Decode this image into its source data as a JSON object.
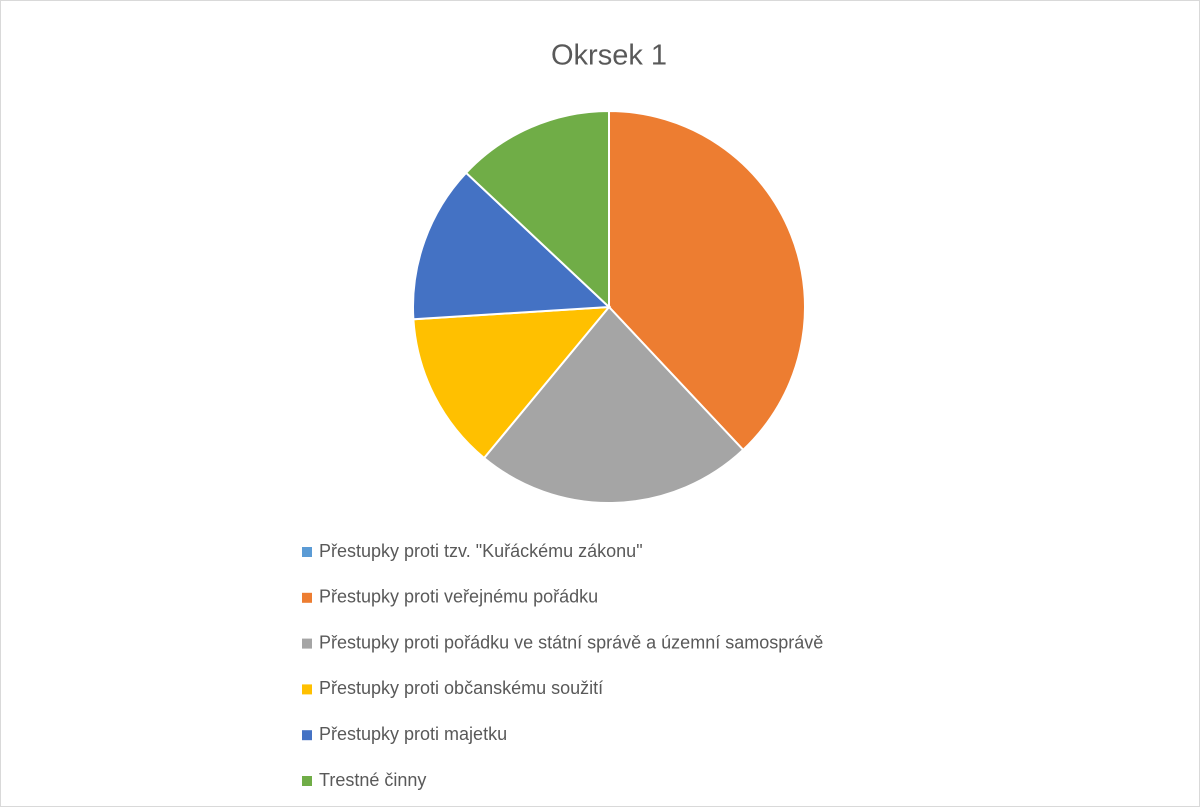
{
  "chart_data": {
    "type": "pie",
    "title": "Okrsek 1",
    "categories": [
      "Přestupky proti tzv. \"Kuřáckému zákonu\"",
      "Přestupky proti veřejnému pořádku",
      "Přestupky proti pořádku ve státní správě a územní samosprávě",
      "Přestupky proti občanskému soužití",
      "Přestupky proti majetku",
      "Trestné činny"
    ],
    "values": [
      0,
      38,
      23,
      13,
      13,
      13
    ],
    "colors": [
      "#5b9bd5",
      "#ed7d31",
      "#a5a5a5",
      "#ffc000",
      "#4472c4",
      "#70ad47"
    ],
    "legend": "bottom"
  }
}
